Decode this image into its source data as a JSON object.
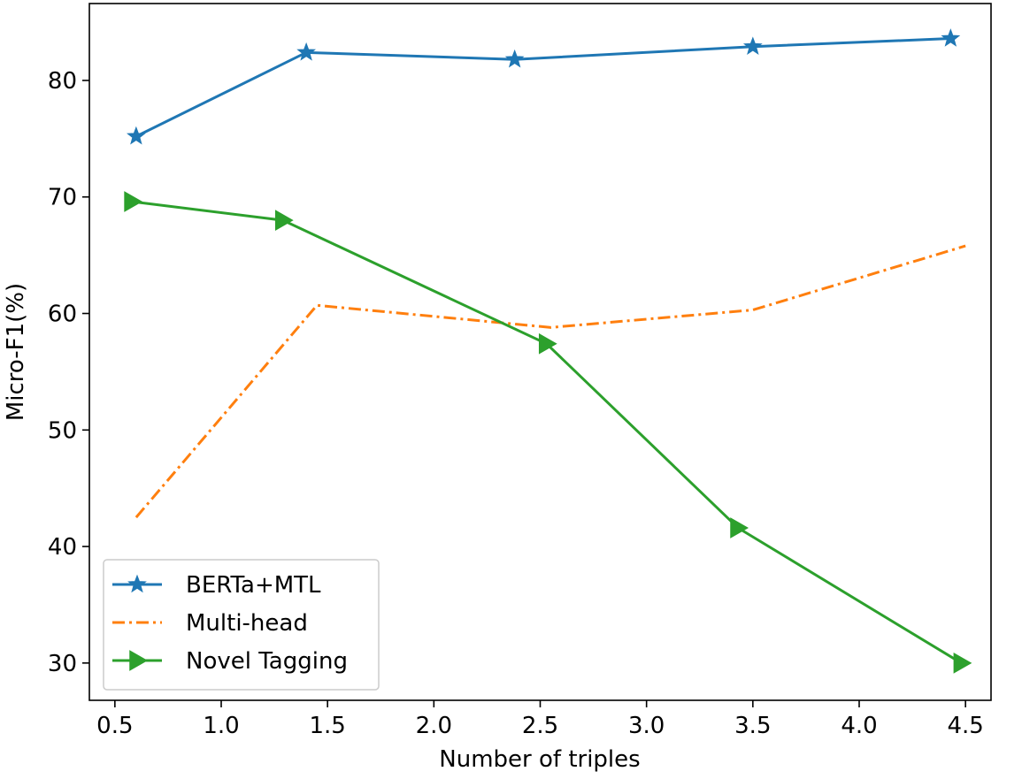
{
  "chart_data": {
    "type": "line",
    "xlabel": "Number of triples",
    "ylabel": "Micro-F1(%)",
    "xlim": [
      0.38,
      4.62
    ],
    "ylim": [
      26.8,
      86.6
    ],
    "xticks": [
      0.5,
      1.0,
      1.5,
      2.0,
      2.5,
      3.0,
      3.5,
      4.0,
      4.5
    ],
    "xtick_labels": [
      "0.5",
      "1.0",
      "1.5",
      "2.0",
      "2.5",
      "3.0",
      "3.5",
      "4.0",
      "4.5"
    ],
    "yticks": [
      30,
      40,
      50,
      60,
      70,
      80
    ],
    "ytick_labels": [
      "30",
      "40",
      "50",
      "60",
      "70",
      "80"
    ],
    "grid": false,
    "legend_position": "lower-left",
    "series": [
      {
        "name": "BERTa+MTL",
        "color": "#1f77b4",
        "line_style": "solid",
        "marker": "star",
        "x": [
          0.6,
          1.4,
          2.38,
          3.5,
          4.43
        ],
        "y": [
          75.2,
          82.4,
          81.8,
          82.9,
          83.6
        ]
      },
      {
        "name": "Multi-head",
        "color": "#ff7f0e",
        "line_style": "dash-dot",
        "marker": "none",
        "x": [
          0.6,
          1.45,
          2.55,
          3.5,
          4.5
        ],
        "y": [
          42.5,
          60.7,
          58.8,
          60.3,
          65.8
        ]
      },
      {
        "name": "Novel Tagging",
        "color": "#2ca02c",
        "line_style": "solid",
        "marker": "triangle-right",
        "x": [
          0.58,
          1.29,
          2.53,
          3.43,
          4.48
        ],
        "y": [
          69.6,
          68.0,
          57.4,
          41.6,
          30.0
        ]
      }
    ]
  }
}
